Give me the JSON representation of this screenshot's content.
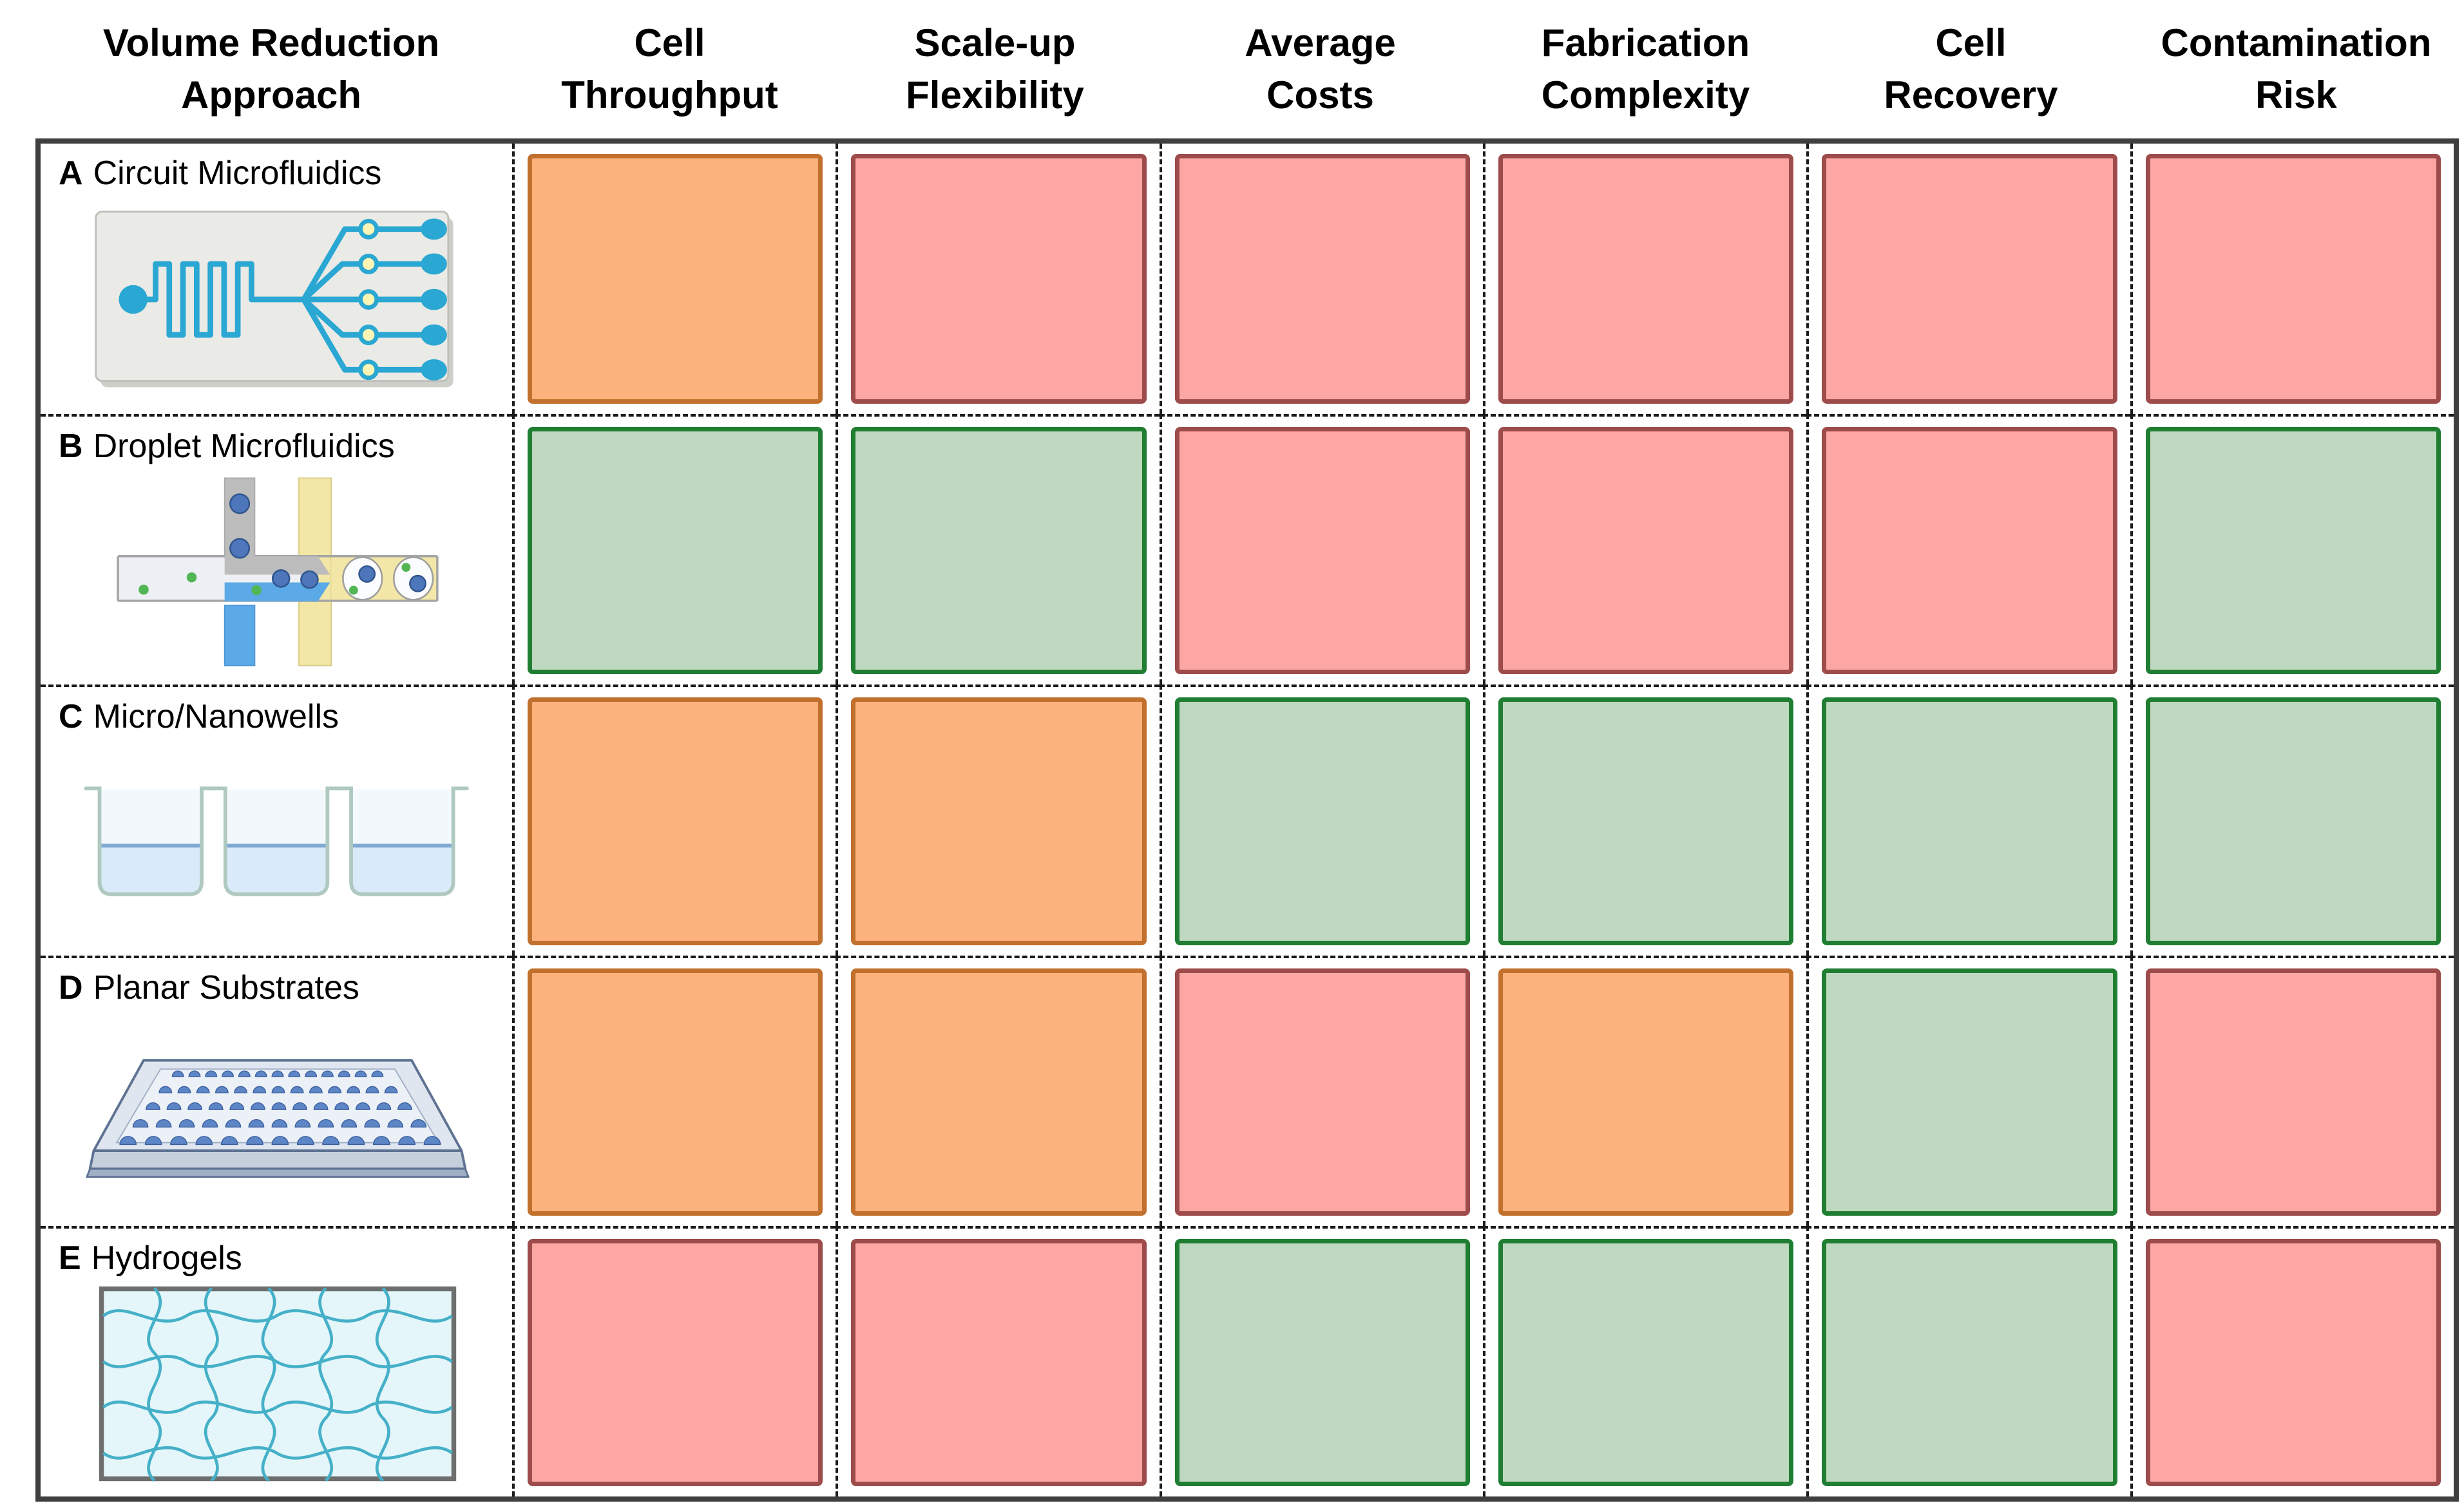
{
  "figure": {
    "approach_header": {
      "label": "Volume Reduction Approach",
      "line1": "Volume Reduction",
      "line2": "Approach"
    },
    "criteria": [
      {
        "label": "Cell Throughput",
        "line1": "Cell",
        "line2": "Throughput"
      },
      {
        "label": "Scale-up Flexibility",
        "line1": "Scale-up",
        "line2": "Flexibility"
      },
      {
        "label": "Average Costs",
        "line1": "Average",
        "line2": "Costs"
      },
      {
        "label": "Fabrication Complexity",
        "line1": "Fabrication",
        "line2": "Complexity"
      },
      {
        "label": "Cell Recovery",
        "line1": "Cell",
        "line2": "Recovery"
      },
      {
        "label": "Contamination Risk",
        "line1": "Contamination",
        "line2": "Risk"
      }
    ],
    "rows": [
      {
        "letter": "A",
        "label": "Circuit Microfluidics",
        "icon": "circuit-microfluidics-icon",
        "ratings": [
          "orange",
          "red",
          "red",
          "red",
          "red",
          "red"
        ]
      },
      {
        "letter": "B",
        "label": "Droplet Microfluidics",
        "icon": "droplet-microfluidics-icon",
        "ratings": [
          "green",
          "green",
          "red",
          "red",
          "red",
          "green"
        ]
      },
      {
        "letter": "C",
        "label": "Micro/Nanowells",
        "icon": "micro-nanowells-icon",
        "ratings": [
          "orange",
          "orange",
          "green",
          "green",
          "green",
          "green"
        ]
      },
      {
        "letter": "D",
        "label": "Planar Substrates",
        "icon": "planar-substrates-icon",
        "ratings": [
          "orange",
          "orange",
          "red",
          "orange",
          "green",
          "red"
        ]
      },
      {
        "letter": "E",
        "label": "Hydrogels",
        "icon": "hydrogels-icon",
        "ratings": [
          "red",
          "red",
          "green",
          "green",
          "green",
          "red"
        ]
      }
    ],
    "palette": {
      "green_fill": "#BFD8C0",
      "green_border": "#1F7E32",
      "orange_fill": "#FBB27D",
      "orange_border": "#C2702E",
      "red_fill": "#FCA7A4",
      "red_border": "#9E4B4B"
    }
  },
  "chart_data": {
    "type": "heatmap",
    "rows": [
      "Circuit Microfluidics",
      "Droplet Microfluidics",
      "Micro/Nanowells",
      "Planar Substrates",
      "Hydrogels"
    ],
    "row_letters": [
      "A",
      "B",
      "C",
      "D",
      "E"
    ],
    "columns": [
      "Cell Throughput",
      "Scale-up Flexibility",
      "Average Costs",
      "Fabrication Complexity",
      "Cell Recovery",
      "Contamination Risk"
    ],
    "values": [
      [
        "orange",
        "red",
        "red",
        "red",
        "red",
        "red"
      ],
      [
        "green",
        "green",
        "red",
        "red",
        "red",
        "green"
      ],
      [
        "orange",
        "orange",
        "green",
        "green",
        "green",
        "green"
      ],
      [
        "orange",
        "orange",
        "red",
        "orange",
        "green",
        "red"
      ],
      [
        "red",
        "red",
        "green",
        "green",
        "green",
        "red"
      ]
    ],
    "color_scale": {
      "green": "#BFD8C0",
      "orange": "#FBB27D",
      "red": "#FCA7A4"
    },
    "grid": "dashed",
    "legend_position": "none"
  }
}
